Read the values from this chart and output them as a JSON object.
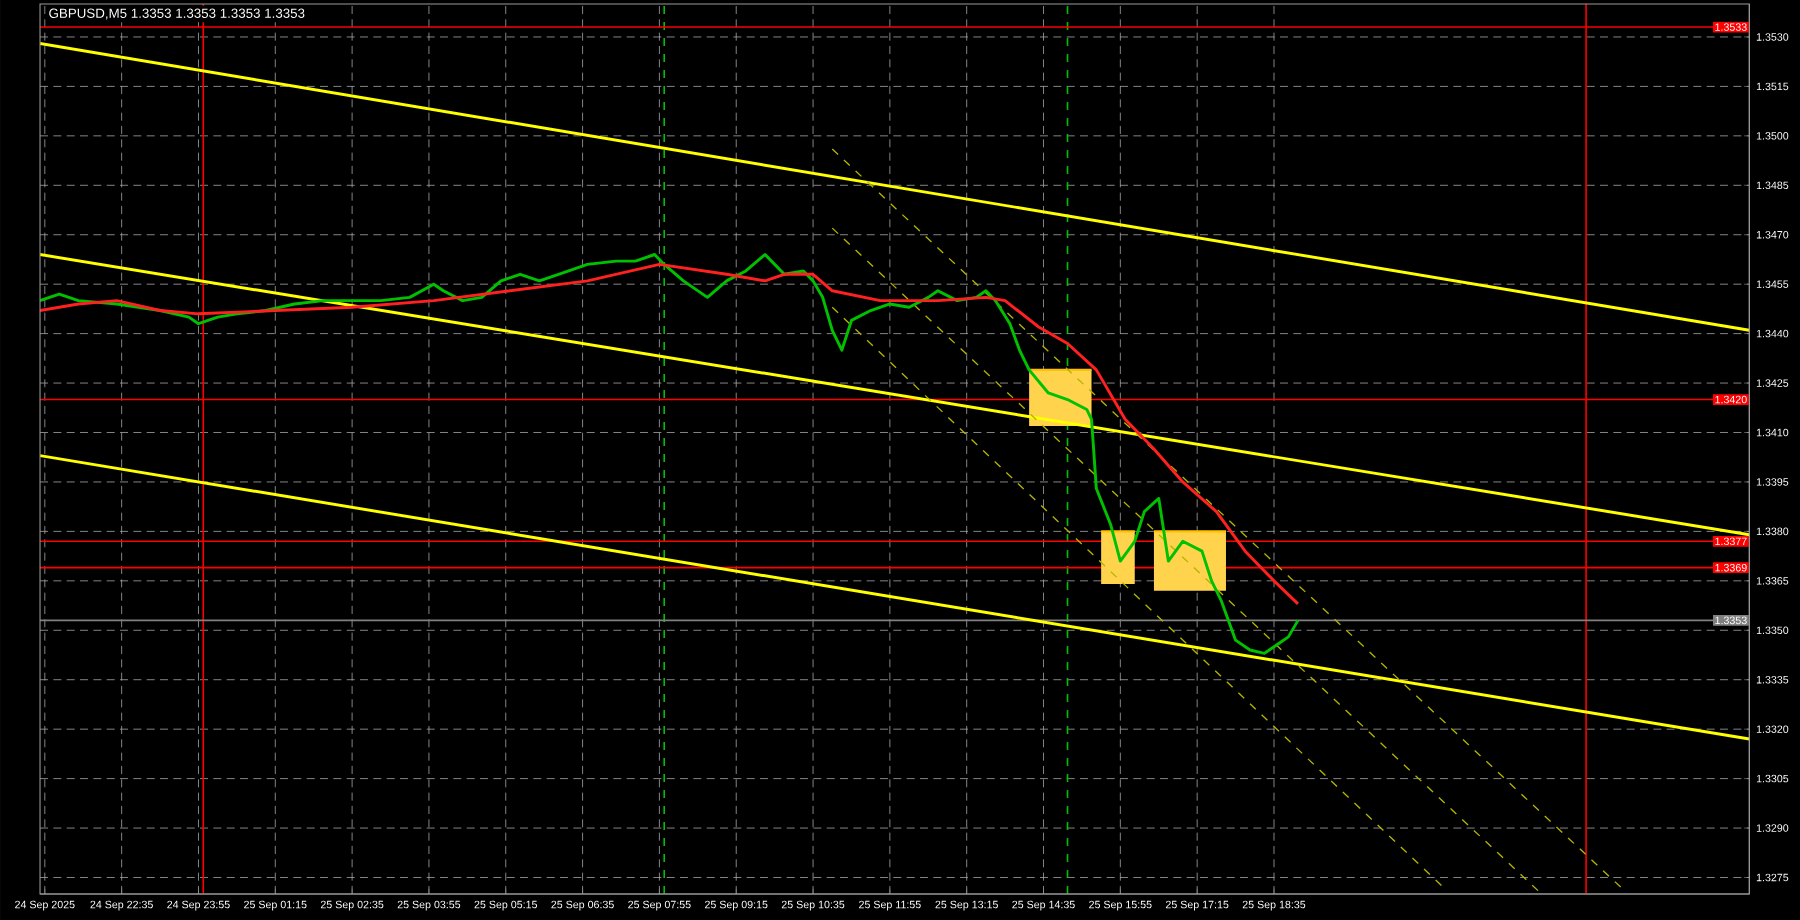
{
  "chart_data": {
    "type": "line",
    "title": "GBPUSD,M5  1.3353 1.3353 1.3353 1.3353",
    "xlim": [
      "2025-09-24T21:10",
      "2025-09-26T02:50"
    ],
    "ylim": [
      1.327,
      1.354
    ],
    "xticks": [
      {
        "value": "2025-09-24T21:15",
        "label": "24 Sep 2025"
      },
      {
        "value": "2025-09-24T22:35",
        "label": "24 Sep 22:35"
      },
      {
        "value": "2025-09-24T23:55",
        "label": "24 Sep 23:55"
      },
      {
        "value": "2025-09-25T01:15",
        "label": "25 Sep 01:15"
      },
      {
        "value": "2025-09-25T02:35",
        "label": "25 Sep 02:35"
      },
      {
        "value": "2025-09-25T03:55",
        "label": "25 Sep 03:55"
      },
      {
        "value": "2025-09-25T05:15",
        "label": "25 Sep 05:15"
      },
      {
        "value": "2025-09-25T06:35",
        "label": "25 Sep 06:35"
      },
      {
        "value": "2025-09-25T07:55",
        "label": "25 Sep 07:55"
      },
      {
        "value": "2025-09-25T09:15",
        "label": "25 Sep 09:15"
      },
      {
        "value": "2025-09-25T10:35",
        "label": "25 Sep 10:35"
      },
      {
        "value": "2025-09-25T11:55",
        "label": "25 Sep 11:55"
      },
      {
        "value": "2025-09-25T13:15",
        "label": "25 Sep 13:15"
      },
      {
        "value": "2025-09-25T14:35",
        "label": "25 Sep 14:35"
      },
      {
        "value": "2025-09-25T15:55",
        "label": "25 Sep 15:55"
      },
      {
        "value": "2025-09-25T17:15",
        "label": "25 Sep 17:15"
      },
      {
        "value": "2025-09-25T18:35",
        "label": "25 Sep 18:35"
      }
    ],
    "yticks": [
      {
        "value": 1.3275,
        "label": "1.3275"
      },
      {
        "value": 1.329,
        "label": "1.3290"
      },
      {
        "value": 1.3305,
        "label": "1.3305"
      },
      {
        "value": 1.332,
        "label": "1.3320"
      },
      {
        "value": 1.3335,
        "label": "1.3335"
      },
      {
        "value": 1.335,
        "label": "1.3350"
      },
      {
        "value": 1.3365,
        "label": "1.3365"
      },
      {
        "value": 1.338,
        "label": "1.3380"
      },
      {
        "value": 1.3395,
        "label": "1.3395"
      },
      {
        "value": 1.341,
        "label": "1.3410"
      },
      {
        "value": 1.3425,
        "label": "1.3425"
      },
      {
        "value": 1.344,
        "label": "1.3440"
      },
      {
        "value": 1.3455,
        "label": "1.3455"
      },
      {
        "value": 1.347,
        "label": "1.3470"
      },
      {
        "value": 1.3485,
        "label": "1.3485"
      },
      {
        "value": 1.35,
        "label": "1.3500"
      },
      {
        "value": 1.3515,
        "label": "1.3515"
      },
      {
        "value": 1.353,
        "label": "1.3530"
      }
    ],
    "grid": true,
    "series": [
      {
        "type": "line",
        "color": "#ffc000",
        "x": [
          "2025-09-25T14:20",
          "2025-09-25T15:25"
        ],
        "values": [
          1.3429,
          1.3429
        ],
        "lower": [
          1.3412,
          1.3412
        ],
        "upper": [
          1.3429,
          1.3429
        ]
      },
      {
        "type": "line",
        "color": "#ffc000",
        "x": [
          "2025-09-25T15:35",
          "2025-09-25T16:10"
        ],
        "values": [
          1.338,
          1.338
        ],
        "lower": [
          1.3364,
          1.3364
        ],
        "upper": [
          1.338,
          1.338
        ]
      },
      {
        "type": "line",
        "color": "#ffc000",
        "x": [
          "2025-09-25T16:30",
          "2025-09-25T17:45"
        ],
        "values": [
          1.338,
          1.338
        ],
        "lower": [
          1.3362,
          1.3362
        ],
        "upper": [
          1.338,
          1.338
        ]
      },
      {
        "type": "line",
        "color": "#ffff00",
        "x": [
          "2025-09-24T21:10",
          "2025-09-26T02:50"
        ],
        "values": [
          1.3528,
          1.3441
        ]
      },
      {
        "type": "line",
        "color": "#ffff00",
        "x": [
          "2025-09-24T21:10",
          "2025-09-26T02:50"
        ],
        "values": [
          1.3464,
          1.3379
        ]
      },
      {
        "type": "line",
        "color": "#ffff00",
        "x": [
          "2025-09-24T21:10",
          "2025-09-26T02:50"
        ],
        "values": [
          1.3403,
          1.3317
        ]
      },
      {
        "type": "line",
        "color": "#b4b400",
        "line_style": "dashed",
        "x": [
          "2025-09-25T10:55",
          "2025-09-26T00:40"
        ],
        "values": [
          1.3496,
          1.3271
        ]
      },
      {
        "type": "line",
        "color": "#b4b400",
        "line_style": "dashed",
        "x": [
          "2025-09-25T10:55",
          "2025-09-25T23:10"
        ],
        "values": [
          1.3472,
          1.3271
        ]
      },
      {
        "type": "line",
        "color": "#b4b400",
        "line_style": "dashed",
        "x": [
          "2025-09-25T10:55",
          "2025-09-25T21:35"
        ],
        "values": [
          1.3448,
          1.3271
        ]
      },
      {
        "color": "#00c000",
        "x": [
          "2025-09-24T21:10",
          "2025-09-24T21:30",
          "2025-09-24T21:50",
          "2025-09-24T22:30",
          "2025-09-24T23:15",
          "2025-09-24T23:45",
          "2025-09-24T23:55",
          "2025-09-25T00:15",
          "2025-09-25T00:35",
          "2025-09-25T01:05",
          "2025-09-25T01:35",
          "2025-09-25T02:05",
          "2025-09-25T02:35",
          "2025-09-25T03:05",
          "2025-09-25T03:35",
          "2025-09-25T04:00",
          "2025-09-25T04:10",
          "2025-09-25T04:30",
          "2025-09-25T04:50",
          "2025-09-25T05:10",
          "2025-09-25T05:30",
          "2025-09-25T05:50",
          "2025-09-25T06:10",
          "2025-09-25T06:40",
          "2025-09-25T07:10",
          "2025-09-25T07:30",
          "2025-09-25T07:50",
          "2025-09-25T08:00",
          "2025-09-25T08:20",
          "2025-09-25T08:45",
          "2025-09-25T09:05",
          "2025-09-25T09:25",
          "2025-09-25T09:45",
          "2025-09-25T09:55",
          "2025-09-25T10:05",
          "2025-09-25T10:25",
          "2025-09-25T10:35",
          "2025-09-25T10:45",
          "2025-09-25T10:55",
          "2025-09-25T11:05",
          "2025-09-25T11:15",
          "2025-09-25T11:35",
          "2025-09-25T11:55",
          "2025-09-25T12:15",
          "2025-09-25T12:35",
          "2025-09-25T12:45",
          "2025-09-25T13:05",
          "2025-09-25T13:25",
          "2025-09-25T13:35",
          "2025-09-25T13:45",
          "2025-09-25T14:00",
          "2025-09-25T14:10",
          "2025-09-25T14:20",
          "2025-09-25T14:40",
          "2025-09-25T15:00",
          "2025-09-25T15:20",
          "2025-09-25T15:25",
          "2025-09-25T15:30",
          "2025-09-25T15:45",
          "2025-09-25T15:55",
          "2025-09-25T16:10",
          "2025-09-25T16:20",
          "2025-09-25T16:35",
          "2025-09-25T16:45",
          "2025-09-25T17:00",
          "2025-09-25T17:20",
          "2025-09-25T17:30",
          "2025-09-25T17:40",
          "2025-09-25T17:55",
          "2025-09-25T18:10",
          "2025-09-25T18:25",
          "2025-09-25T18:40",
          "2025-09-25T18:50",
          "2025-09-25T19:00"
        ],
        "values": [
          1.345,
          1.3452,
          1.345,
          1.3449,
          1.3447,
          1.3445,
          1.3443,
          1.3445,
          1.3446,
          1.3447,
          1.3449,
          1.345,
          1.345,
          1.345,
          1.3451,
          1.3455,
          1.3453,
          1.345,
          1.3451,
          1.3456,
          1.3458,
          1.3456,
          1.3458,
          1.3461,
          1.3462,
          1.3462,
          1.3464,
          1.3461,
          1.3456,
          1.3451,
          1.3456,
          1.3459,
          1.3464,
          1.3461,
          1.3458,
          1.3459,
          1.3456,
          1.3451,
          1.3441,
          1.3435,
          1.3444,
          1.3447,
          1.3449,
          1.3448,
          1.3451,
          1.3453,
          1.345,
          1.3451,
          1.3453,
          1.345,
          1.3443,
          1.3435,
          1.3429,
          1.3422,
          1.342,
          1.3417,
          1.3414,
          1.3393,
          1.3382,
          1.3371,
          1.3377,
          1.3386,
          1.339,
          1.3371,
          1.3377,
          1.3374,
          1.3365,
          1.3359,
          1.3347,
          1.3344,
          1.3343,
          1.3346,
          1.3348,
          1.3353
        ]
      },
      {
        "color": "#ff2020",
        "x": [
          "2025-09-24T21:10",
          "2025-09-24T21:50",
          "2025-09-24T22:30",
          "2025-09-24T23:15",
          "2025-09-24T23:55",
          "2025-09-25T01:15",
          "2025-09-25T02:35",
          "2025-09-25T04:00",
          "2025-09-25T05:20",
          "2025-09-25T06:40",
          "2025-09-25T07:55",
          "2025-09-25T09:05",
          "2025-09-25T09:45",
          "2025-09-25T10:05",
          "2025-09-25T10:35",
          "2025-09-25T10:55",
          "2025-09-25T11:45",
          "2025-09-25T12:45",
          "2025-09-25T13:35",
          "2025-09-25T13:55",
          "2025-09-25T14:30",
          "2025-09-25T15:00",
          "2025-09-25T15:30",
          "2025-09-25T16:00",
          "2025-09-25T16:30",
          "2025-09-25T17:00",
          "2025-09-25T17:35",
          "2025-09-25T18:05",
          "2025-09-25T18:35",
          "2025-09-25T19:00"
        ],
        "values": [
          1.3447,
          1.3449,
          1.345,
          1.3447,
          1.3446,
          1.3447,
          1.3448,
          1.345,
          1.3453,
          1.3456,
          1.3461,
          1.3458,
          1.3456,
          1.3458,
          1.3458,
          1.3453,
          1.345,
          1.345,
          1.3451,
          1.345,
          1.3442,
          1.3437,
          1.3429,
          1.3414,
          1.3405,
          1.3395,
          1.3386,
          1.3374,
          1.3365,
          1.3358
        ]
      }
    ],
    "ref_lines": [
      {
        "axis": "x",
        "value": "2025-09-25T00:00",
        "color": "#ff0000"
      },
      {
        "axis": "x",
        "value": "2025-09-25T08:00",
        "color": "#00c000",
        "line_style": "dashed"
      },
      {
        "axis": "x",
        "value": "2025-09-25T15:00",
        "color": "#00c000",
        "line_style": "dashed"
      },
      {
        "axis": "x",
        "value": "2025-09-26T00:00",
        "color": "#ff0000"
      },
      {
        "axis": "y",
        "value": 1.3533,
        "label": "1.3533",
        "color": "#ff0000"
      },
      {
        "axis": "y",
        "value": 1.342,
        "label": "1.3420",
        "color": "#ff0000"
      },
      {
        "axis": "y",
        "value": 1.3377,
        "label": "1.3377",
        "color": "#ff0000"
      },
      {
        "axis": "y",
        "value": 1.3369,
        "label": "1.3369",
        "color": "#ff0000"
      },
      {
        "axis": "y",
        "value": 1.3353,
        "label": "1.3353",
        "color": "#808080"
      }
    ]
  }
}
